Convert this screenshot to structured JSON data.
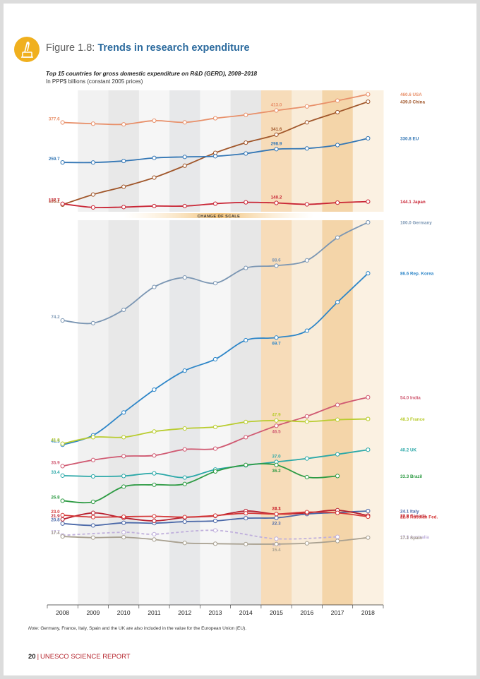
{
  "header": {
    "figure_number": "Figure 1.8:",
    "figure_title": "Trends in research expenditure",
    "subtitle": "Top 15 countries for gross domestic expenditure on R&D (GERD), 2008–2018",
    "units": "In PPP$ billions (constant 2005 prices)",
    "icon": "microscope-icon"
  },
  "chart_data": {
    "type": "line",
    "title": "Top 15 countries for gross domestic expenditure on R&D (GERD), 2008–2018",
    "ylabel": "In PPP$ billions (constant 2005 prices)",
    "x": [
      2008,
      2009,
      2010,
      2011,
      2012,
      2013,
      2014,
      2015,
      2016,
      2017,
      2018
    ],
    "scale_break_label": "CHANGE OF SCALE",
    "panels": [
      {
        "name": "upper",
        "ylim": [
          135,
          462
        ],
        "series": [
          {
            "name": "USA",
            "color": "#e8906a",
            "values": [
              377.6,
              374,
              372,
              383,
              378,
              390,
              400,
              413.0,
              425,
              442,
              460.6
            ],
            "start_label": "377.6",
            "mid_label": "413.0",
            "end_label": "460.6 USA"
          },
          {
            "name": "China",
            "color": "#a0562a",
            "values": [
              135.2,
              165,
              188,
              215,
              250,
              288,
              318,
              341.6,
              378,
              408,
              439.0
            ],
            "start_label": "135.2",
            "mid_label": "341.6",
            "end_label": "439.0 China"
          },
          {
            "name": "EU",
            "color": "#3477b5",
            "values": [
              259.7,
              259.5,
              264,
              273,
              276,
              278,
              286,
              298.9,
              301,
              311,
              330.8
            ],
            "start_label": "259.7",
            "mid_label": "298.9",
            "end_label": "330.8 EU"
          },
          {
            "name": "Japan",
            "color": "#c92535",
            "values": [
              137.7,
              127,
              128,
              131,
              131,
              138,
              142,
              140.2,
              136,
              141,
              144.1
            ],
            "start_label": "137.7",
            "mid_label": "140.2",
            "end_label": "144.1 Japan"
          }
        ]
      },
      {
        "name": "lower",
        "ylim": [
          15,
          100
        ],
        "series": [
          {
            "name": "Germany",
            "color": "#7b96b3",
            "values": [
              74.2,
              73.5,
              77,
              83,
              85.5,
              84,
              88,
              88.6,
              90,
              96,
              100.0
            ],
            "start_label": "74.2",
            "mid_label": "88.6",
            "end_label": "100.0 Germany"
          },
          {
            "name": "Rep. Korea",
            "color": "#2e86c8",
            "values": [
              41.5,
              44,
              50,
              56,
              61,
              64,
              69,
              69.7,
              71.5,
              79,
              86.6
            ],
            "start_label": "41.5",
            "mid_label": "69.7",
            "end_label": "86.6 Rep. Korea"
          },
          {
            "name": "India",
            "color": "#d05a72",
            "values": [
              35.9,
              37.5,
              38.5,
              38.7,
              40.3,
              40.5,
              43.5,
              46.5,
              49,
              52,
              54.0
            ],
            "start_label": "35.9",
            "mid_label": "46.5",
            "end_label": "54.0 India"
          },
          {
            "name": "France",
            "color": "#b9cc2f",
            "values": [
              41.8,
              43.5,
              43.5,
              45,
              45.8,
              46.2,
              47.5,
              47.9,
              47.6,
              48.1,
              48.3
            ],
            "start_label": "41.8",
            "mid_label": "47.9",
            "end_label": "48.3 France"
          },
          {
            "name": "UK",
            "color": "#2aa8a8",
            "values": [
              33.4,
              33.2,
              33.3,
              34,
              32.9,
              35,
              36.1,
              37.0,
              37.9,
              39,
              40.2
            ],
            "start_label": "33.4",
            "mid_label": "37.0",
            "end_label": "40.2 UK"
          },
          {
            "name": "Brazil",
            "color": "#2e9b44",
            "values": [
              26.8,
              26.5,
              30.5,
              31,
              31.2,
              34.5,
              36.2,
              36.2,
              33,
              33.3,
              null
            ],
            "start_label": "26.8",
            "mid_label": "36.2",
            "end_label": "33.3 Brazil"
          },
          {
            "name": "Italy",
            "color": "#4a68a8",
            "values": [
              20.8,
              20.3,
              21,
              20.9,
              21.3,
              21.5,
              22.2,
              22.3,
              23.3,
              23.7,
              24.1
            ],
            "start_label": "20.8",
            "mid_label": "22.3",
            "end_label": "24.1 Italy"
          },
          {
            "name": "Canada",
            "color": "#b8202f",
            "values": [
              21.9,
              23.6,
              22.3,
              21.5,
              22.4,
              22.8,
              24.1,
              23.3,
              23.6,
              24.3,
              22.9
            ],
            "start_label": "21.9",
            "mid_label": "24.1",
            "end_label": "22.9 Canada"
          },
          {
            "name": "Russian Fed.",
            "color": "#d53a3a",
            "values": [
              23.0,
              22.5,
              22.6,
              22.7,
              22.5,
              22.9,
              23.5,
              23.3,
              23.8,
              23.6,
              22.6
            ],
            "start_label": "23.0",
            "mid_label": "23.3",
            "end_label": "22.6 Russian Fed."
          },
          {
            "name": "Australia",
            "color": "#c0b0dc",
            "dashed": true,
            "values": [
              17.7,
              null,
              18.5,
              18,
              null,
              19,
              null,
              16.8,
              null,
              17.3,
              null
            ],
            "start_label": "17.7",
            "mid_label": "16.8",
            "end_label": "17.3 Australia"
          },
          {
            "name": "Spain",
            "color": "#a8a090",
            "values": [
              17.4,
              17.1,
              17.2,
              16.6,
              15.7,
              15.5,
              15.4,
              15.4,
              15.6,
              16.2,
              17.1
            ],
            "start_label": "17.4",
            "mid_label": "15.4",
            "end_label": "17.1 Spain"
          }
        ]
      }
    ]
  },
  "note": {
    "label": "Note:",
    "text": " Germany, France, Italy, Spain and the UK are also included in the value for the European Union (EU)."
  },
  "footer": {
    "page_number": "20",
    "publication": "UNESCO SCIENCE REPORT"
  }
}
